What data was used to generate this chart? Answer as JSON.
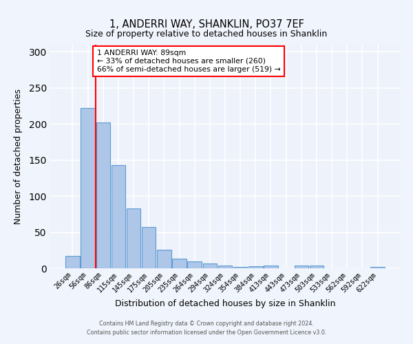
{
  "title": "1, ANDERRI WAY, SHANKLIN, PO37 7EF",
  "subtitle": "Size of property relative to detached houses in Shanklin",
  "xlabel": "Distribution of detached houses by size in Shanklin",
  "ylabel": "Number of detached properties",
  "bar_color": "#aec6e8",
  "bar_edge_color": "#5b9bd5",
  "background_color": "#eef2fb",
  "grid_color": "#ffffff",
  "categories": [
    "26sqm",
    "56sqm",
    "86sqm",
    "115sqm",
    "145sqm",
    "175sqm",
    "205sqm",
    "235sqm",
    "264sqm",
    "294sqm",
    "324sqm",
    "354sqm",
    "384sqm",
    "413sqm",
    "443sqm",
    "473sqm",
    "503sqm",
    "533sqm",
    "562sqm",
    "592sqm",
    "622sqm"
  ],
  "values": [
    17,
    222,
    202,
    143,
    83,
    57,
    26,
    13,
    10,
    7,
    4,
    2,
    3,
    4,
    0,
    4,
    4,
    0,
    0,
    0,
    2
  ],
  "ylim": [
    0,
    310
  ],
  "yticks": [
    0,
    50,
    100,
    150,
    200,
    250,
    300
  ],
  "red_line_index": 2,
  "annotation_title": "1 ANDERRI WAY: 89sqm",
  "annotation_line1": "← 33% of detached houses are smaller (260)",
  "annotation_line2": "66% of semi-detached houses are larger (519) →",
  "footer_line1": "Contains HM Land Registry data © Crown copyright and database right 2024.",
  "footer_line2": "Contains public sector information licensed under the Open Government Licence v3.0."
}
